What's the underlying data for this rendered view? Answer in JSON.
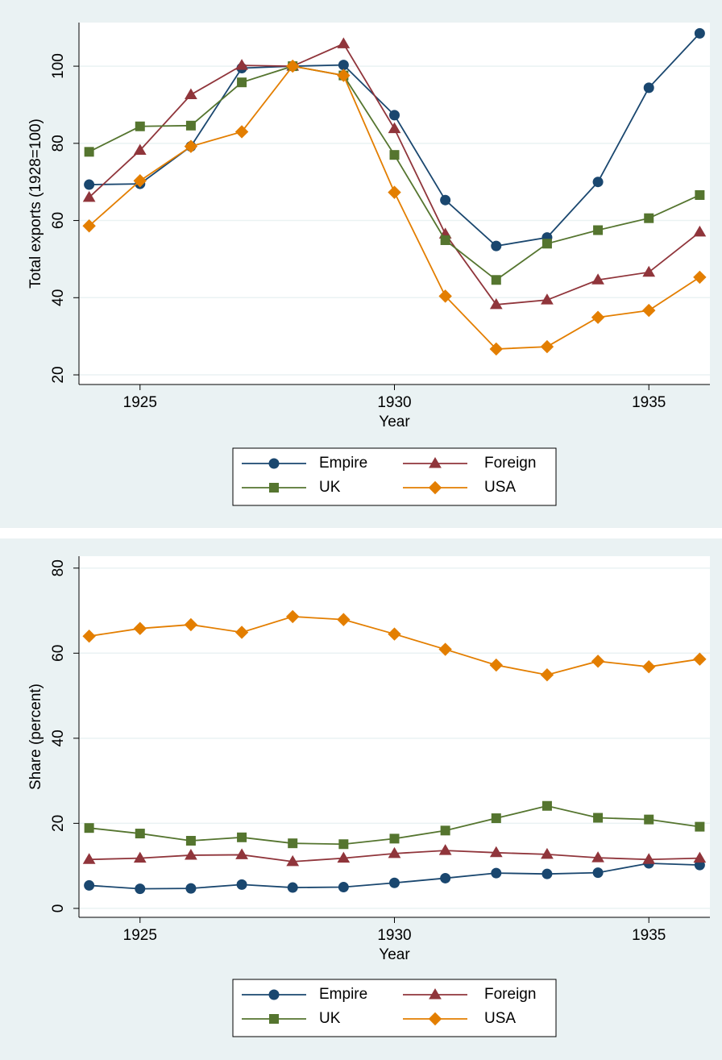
{
  "chart_data": [
    {
      "type": "line",
      "x_label": "Year",
      "y_label": "Total exports (1928=100)",
      "x": [
        1924,
        1925,
        1926,
        1927,
        1928,
        1929,
        1930,
        1931,
        1932,
        1933,
        1934,
        1935,
        1936
      ],
      "xlim": [
        1923.8,
        1936.2
      ],
      "xticks": [
        1925,
        1930,
        1935
      ],
      "ylim": [
        17.5,
        111.3
      ],
      "yticks": [
        20,
        40,
        60,
        80,
        100
      ],
      "grid": true,
      "legend": "bottom",
      "series": [
        {
          "name": "Empire",
          "color": "#1a476f",
          "marker": "circle",
          "values": [
            69.3,
            69.5,
            79.2,
            99.5,
            100,
            100.3,
            87.3,
            65.3,
            53.4,
            55.6,
            70,
            94.4,
            108.5
          ]
        },
        {
          "name": "Foreign",
          "color": "#90353b",
          "marker": "triangle",
          "values": [
            66,
            78.2,
            92.6,
            100.2,
            100,
            105.8,
            83.8,
            56.5,
            38.2,
            39.4,
            44.6,
            46.6,
            57
          ]
        },
        {
          "name": "UK",
          "color": "#55752f",
          "marker": "square",
          "values": [
            77.8,
            84.4,
            84.6,
            95.8,
            100,
            97.6,
            77,
            54.9,
            44.6,
            54,
            57.5,
            60.6,
            66.6
          ]
        },
        {
          "name": "USA",
          "color": "#e37e00",
          "marker": "diamond",
          "values": [
            58.6,
            70.3,
            79.2,
            83,
            100,
            97.6,
            67.3,
            40.4,
            26.7,
            27.3,
            34.9,
            36.7,
            45.3
          ]
        }
      ]
    },
    {
      "type": "line",
      "x_label": "Year",
      "y_label": "Share (percent)",
      "x": [
        1924,
        1925,
        1926,
        1927,
        1928,
        1929,
        1930,
        1931,
        1932,
        1933,
        1934,
        1935,
        1936
      ],
      "xlim": [
        1923.8,
        1936.2
      ],
      "xticks": [
        1925,
        1930,
        1935
      ],
      "ylim": [
        -2.1,
        82.8
      ],
      "yticks": [
        0,
        20,
        40,
        60,
        80
      ],
      "grid": true,
      "legend": "bottom",
      "series": [
        {
          "name": "Empire",
          "color": "#1a476f",
          "marker": "circle",
          "values": [
            5.4,
            4.6,
            4.7,
            5.6,
            4.9,
            5.0,
            6.0,
            7.1,
            8.3,
            8.1,
            8.4,
            10.6,
            10.2
          ]
        },
        {
          "name": "Foreign",
          "color": "#90353b",
          "marker": "triangle",
          "values": [
            11.5,
            11.8,
            12.5,
            12.6,
            11.0,
            11.8,
            12.9,
            13.6,
            13.1,
            12.7,
            11.9,
            11.5,
            11.8
          ]
        },
        {
          "name": "UK",
          "color": "#55752f",
          "marker": "square",
          "values": [
            18.9,
            17.6,
            15.9,
            16.7,
            15.3,
            15.1,
            16.4,
            18.3,
            21.2,
            24.1,
            21.3,
            20.9,
            19.2
          ]
        },
        {
          "name": "USA",
          "color": "#e37e00",
          "marker": "diamond",
          "values": [
            64,
            65.8,
            66.7,
            64.9,
            68.6,
            67.9,
            64.5,
            60.9,
            57.2,
            54.9,
            58.1,
            56.8,
            58.6
          ]
        }
      ]
    }
  ]
}
